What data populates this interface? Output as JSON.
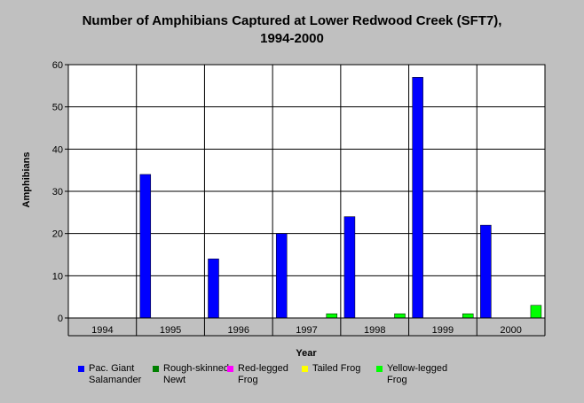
{
  "chart_data": {
    "type": "bar",
    "title_lines": [
      "Number of Amphibians Captured at Lower Redwood Creek (SFT7),",
      "1994-2000"
    ],
    "xlabel": "Year",
    "ylabel": "Amphibians",
    "ylim": [
      0,
      60
    ],
    "yticks": [
      0,
      10,
      20,
      30,
      40,
      50,
      60
    ],
    "grid": true,
    "legend_position": "bottom",
    "categories": [
      "1994",
      "1995",
      "1996",
      "1997",
      "1998",
      "1999",
      "2000"
    ],
    "series": [
      {
        "name": "Pac. Giant Salamander",
        "legend_lines": [
          "Pac. Giant",
          "Salamander"
        ],
        "color": "#0000ff",
        "values": [
          0,
          34,
          14,
          20,
          24,
          57,
          22
        ]
      },
      {
        "name": "Rough-skinned Newt",
        "legend_lines": [
          "Rough-skinned",
          "Newt"
        ],
        "color": "#008000",
        "values": [
          0,
          0,
          0,
          0,
          0,
          0,
          0
        ]
      },
      {
        "name": "Red-legged Frog",
        "legend_lines": [
          "Red-legged",
          "Frog"
        ],
        "color": "#ff00ff",
        "values": [
          0,
          0,
          0,
          0,
          0,
          0,
          0
        ]
      },
      {
        "name": "Tailed Frog",
        "legend_lines": [
          "Tailed Frog"
        ],
        "color": "#ffff00",
        "values": [
          0,
          0,
          0,
          0,
          0,
          0,
          0
        ]
      },
      {
        "name": "Yellow-legged Frog",
        "legend_lines": [
          "Yellow-legged",
          "Frog"
        ],
        "color": "#00ff00",
        "values": [
          0,
          0,
          0,
          1,
          1,
          1,
          3
        ]
      }
    ]
  }
}
